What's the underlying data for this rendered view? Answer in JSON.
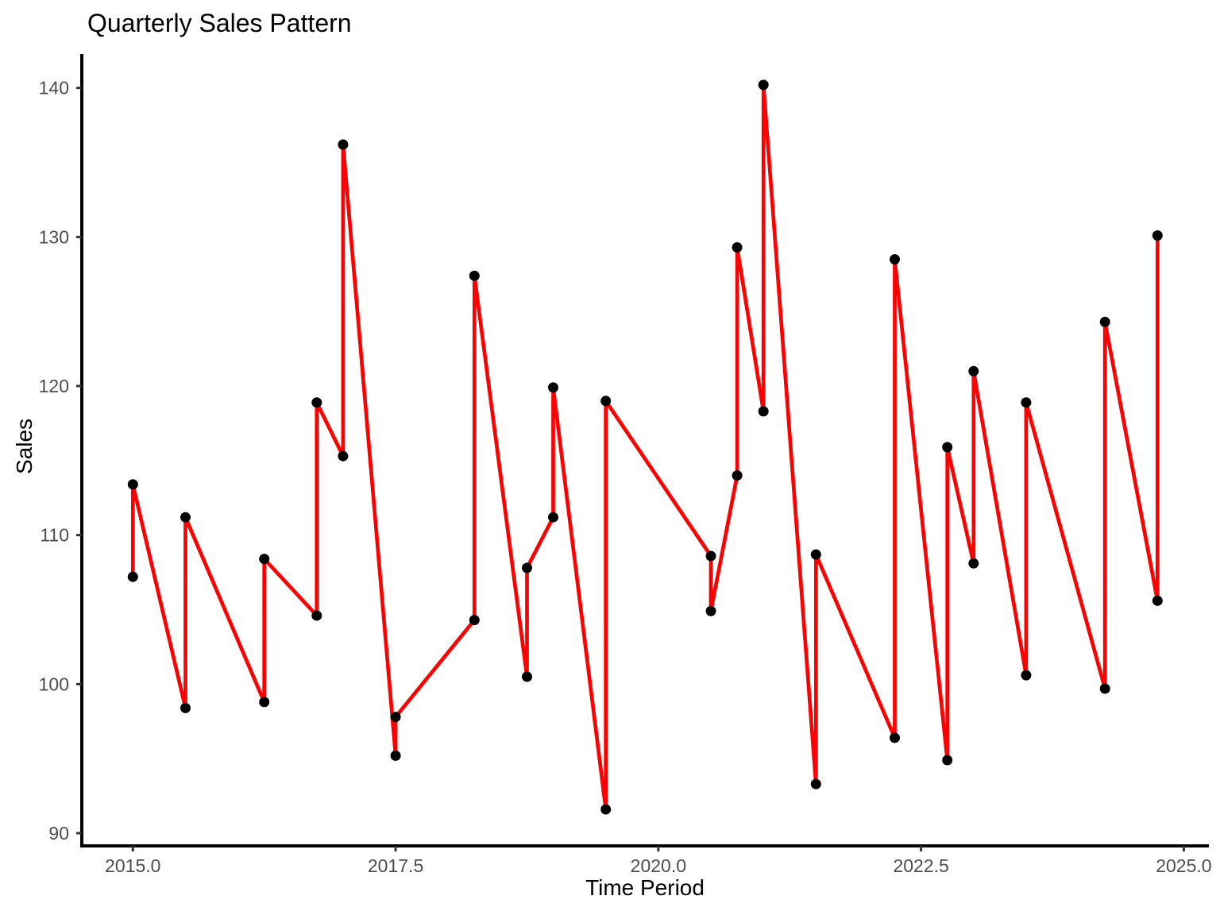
{
  "page": {
    "title": "Quarterly Sales Pattern"
  },
  "chart_data": {
    "type": "line",
    "title": "Quarterly Sales Pattern",
    "xlabel": "Time Period",
    "ylabel": "Sales",
    "x_ticks": [
      "2015.0",
      "2017.5",
      "2020.0",
      "2022.5",
      "2025.0"
    ],
    "x_tick_values": [
      2015.0,
      2017.5,
      2020.0,
      2022.5,
      2025.0
    ],
    "y_ticks": [
      "90",
      "100",
      "110",
      "120",
      "130",
      "140"
    ],
    "y_tick_values": [
      90,
      100,
      110,
      120,
      130,
      140
    ],
    "xlim": [
      2014.51,
      2025.24
    ],
    "ylim": [
      89.1,
      142.7
    ],
    "grid": false,
    "legend": "none",
    "line_color": "#FF0000",
    "point_color": "#000000",
    "axis_color": "#000000",
    "tick_color": "#333333",
    "tick_label_color": "#4d4d4d",
    "series": [
      {
        "name": "Sales",
        "points": [
          [
            2015.0,
            107.2
          ],
          [
            2015.0,
            113.4
          ],
          [
            2015.5,
            98.4
          ],
          [
            2015.5,
            111.2
          ],
          [
            2016.25,
            98.8
          ],
          [
            2016.25,
            108.4
          ],
          [
            2016.75,
            104.6
          ],
          [
            2016.75,
            118.9
          ],
          [
            2017.0,
            115.3
          ],
          [
            2017.0,
            136.2
          ],
          [
            2017.5,
            95.2
          ],
          [
            2017.5,
            97.8
          ],
          [
            2018.25,
            104.3
          ],
          [
            2018.25,
            127.4
          ],
          [
            2018.75,
            100.5
          ],
          [
            2018.75,
            107.8
          ],
          [
            2019.0,
            111.2
          ],
          [
            2019.0,
            119.9
          ],
          [
            2019.5,
            91.6
          ],
          [
            2019.5,
            119.0
          ],
          [
            2020.5,
            108.6
          ],
          [
            2020.5,
            104.9
          ],
          [
            2020.75,
            114.0
          ],
          [
            2020.75,
            129.3
          ],
          [
            2021.0,
            118.3
          ],
          [
            2021.0,
            140.2
          ],
          [
            2021.5,
            93.3
          ],
          [
            2021.5,
            108.7
          ],
          [
            2022.25,
            96.4
          ],
          [
            2022.25,
            128.5
          ],
          [
            2022.75,
            94.9
          ],
          [
            2022.75,
            115.9
          ],
          [
            2023.0,
            108.1
          ],
          [
            2023.0,
            121.0
          ],
          [
            2023.5,
            100.6
          ],
          [
            2023.5,
            118.9
          ],
          [
            2024.25,
            99.7
          ],
          [
            2024.25,
            124.3
          ],
          [
            2024.75,
            105.6
          ],
          [
            2024.75,
            130.1
          ]
        ]
      }
    ]
  }
}
